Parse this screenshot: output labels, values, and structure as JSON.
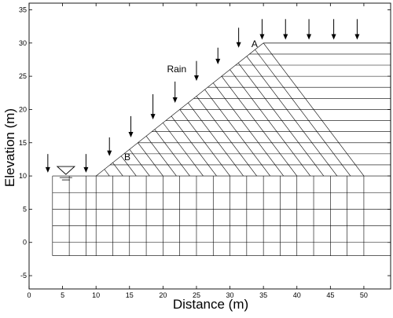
{
  "chart_data": {
    "type": "diagram",
    "xlabel": "Distance (m)",
    "ylabel": "Elevation (m)",
    "xlim": [
      0,
      54
    ],
    "ylim": [
      -7,
      36
    ],
    "xticks": [
      0,
      5,
      10,
      15,
      20,
      25,
      30,
      35,
      40,
      45,
      50
    ],
    "yticks": [
      -5,
      0,
      5,
      10,
      15,
      20,
      25,
      30,
      35
    ],
    "slope": {
      "toe": [
        10,
        10
      ],
      "crest": [
        35,
        30
      ],
      "right_edge": 54,
      "top_right_x": 50,
      "base_elevation": -2
    },
    "foundation_grid_x": [
      3.5,
      6,
      8.5,
      10,
      12.5,
      15,
      17.5,
      20,
      22.5,
      25,
      27.5,
      30,
      32.5,
      35,
      37.5,
      40,
      42.5,
      45,
      47.5,
      50,
      54
    ],
    "foundation_grid_y": [
      -2,
      0,
      2.5,
      5,
      7.5,
      10
    ],
    "rain_arrows": [
      {
        "x": 2.8,
        "y_top": 13.3,
        "y_bottom": 10.5
      },
      {
        "x": 8.5,
        "y_top": 13.3,
        "y_bottom": 10.5
      },
      {
        "x": 12.0,
        "y_top": 15.8,
        "y_bottom": 13.0
      },
      {
        "x": 15.2,
        "y_top": 19.0,
        "y_bottom": 15.8
      },
      {
        "x": 18.5,
        "y_top": 22.3,
        "y_bottom": 18.5
      },
      {
        "x": 21.8,
        "y_top": 24.2,
        "y_bottom": 21.0
      },
      {
        "x": 25.0,
        "y_top": 27.3,
        "y_bottom": 24.3
      },
      {
        "x": 28.2,
        "y_top": 29.3,
        "y_bottom": 26.8
      },
      {
        "x": 31.3,
        "y_top": 32.3,
        "y_bottom": 29.3
      },
      {
        "x": 34.8,
        "y_top": 33.6,
        "y_bottom": 30.5
      },
      {
        "x": 38.3,
        "y_top": 33.6,
        "y_bottom": 30.5
      },
      {
        "x": 41.8,
        "y_top": 33.6,
        "y_bottom": 30.5
      },
      {
        "x": 45.5,
        "y_top": 33.6,
        "y_bottom": 30.5
      },
      {
        "x": 49.0,
        "y_top": 33.6,
        "y_bottom": 30.5
      }
    ],
    "water_table": {
      "x": 5.5,
      "y": 10.0
    },
    "annotations": [
      {
        "text": "Rain",
        "x": 20.6,
        "y": 25.6
      },
      {
        "text": "A",
        "x": 33.2,
        "y": 29.4
      },
      {
        "text": "B",
        "x": 14.2,
        "y": 12.4
      }
    ]
  }
}
